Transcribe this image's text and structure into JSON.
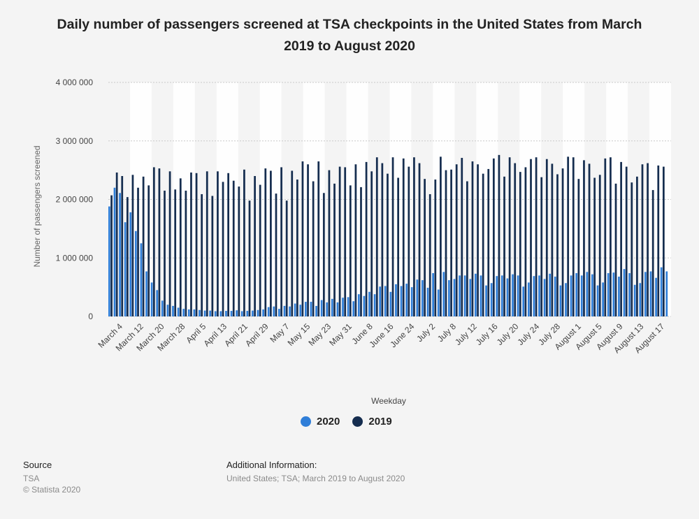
{
  "chart_data": {
    "type": "bar",
    "title": "Daily number of passengers screened at TSA checkpoints in the United States from March 2019 to August 2020",
    "xlabel": "Weekday",
    "ylabel": "Number of passengers screened",
    "ylim": [
      0,
      4000000
    ],
    "yticks": [
      0,
      1000000,
      2000000,
      3000000,
      4000000
    ],
    "ytick_labels": [
      "0",
      "1 000 000",
      "2 000 000",
      "3 000 000",
      "4 000 000"
    ],
    "xtick_labels": [
      "March 4",
      "March 12",
      "March 20",
      "March 28",
      "April 5",
      "April 13",
      "April 21",
      "April 29",
      "May 7",
      "May 15",
      "May 23",
      "May 31",
      "June 8",
      "June 16",
      "June 24",
      "July 2",
      "July 8",
      "July 12",
      "July 16",
      "July 20",
      "July 24",
      "July 28",
      "August 1",
      "August 5",
      "August 9",
      "August 13",
      "August 17"
    ],
    "grid": true,
    "legend_position": "bottom-center",
    "series": [
      {
        "name": "2020",
        "color": "#2f7ed8",
        "values": [
          1880000,
          2200000,
          2110000,
          1610000,
          1780000,
          1460000,
          1250000,
          770000,
          580000,
          450000,
          270000,
          200000,
          180000,
          150000,
          130000,
          120000,
          120000,
          110000,
          100000,
          100000,
          90000,
          90000,
          95000,
          95000,
          105000,
          90000,
          95000,
          100000,
          110000,
          120000,
          160000,
          170000,
          130000,
          180000,
          170000,
          220000,
          200000,
          250000,
          250000,
          180000,
          280000,
          240000,
          300000,
          240000,
          320000,
          330000,
          260000,
          380000,
          350000,
          420000,
          380000,
          510000,
          520000,
          420000,
          550000,
          520000,
          560000,
          500000,
          630000,
          620000,
          490000,
          740000,
          460000,
          760000,
          620000,
          640000,
          700000,
          700000,
          640000,
          730000,
          700000,
          530000,
          570000,
          690000,
          700000,
          650000,
          720000,
          700000,
          510000,
          580000,
          690000,
          700000,
          640000,
          730000,
          680000,
          530000,
          570000,
          700000,
          740000,
          700000,
          760000,
          720000,
          530000,
          580000,
          740000,
          750000,
          680000,
          810000,
          740000,
          540000,
          570000,
          760000,
          770000,
          660000,
          840000,
          770000
        ]
      },
      {
        "name": "2019",
        "color": "#152d4f",
        "values": [
          2070000,
          2460000,
          2400000,
          2040000,
          2420000,
          2200000,
          2390000,
          2240000,
          2550000,
          2530000,
          2150000,
          2480000,
          2170000,
          2360000,
          2150000,
          2460000,
          2450000,
          2090000,
          2480000,
          2060000,
          2480000,
          2300000,
          2450000,
          2320000,
          2220000,
          2510000,
          1980000,
          2400000,
          2250000,
          2530000,
          2490000,
          2100000,
          2550000,
          1980000,
          2490000,
          2340000,
          2650000,
          2600000,
          2310000,
          2650000,
          2110000,
          2500000,
          2270000,
          2560000,
          2550000,
          2240000,
          2600000,
          2210000,
          2640000,
          2480000,
          2720000,
          2620000,
          2440000,
          2720000,
          2370000,
          2700000,
          2560000,
          2720000,
          2620000,
          2350000,
          2090000,
          2340000,
          2730000,
          2500000,
          2510000,
          2600000,
          2710000,
          2310000,
          2650000,
          2600000,
          2440000,
          2520000,
          2700000,
          2760000,
          2390000,
          2720000,
          2620000,
          2470000,
          2550000,
          2690000,
          2720000,
          2380000,
          2690000,
          2610000,
          2430000,
          2530000,
          2730000,
          2720000,
          2350000,
          2670000,
          2610000,
          2370000,
          2420000,
          2700000,
          2720000,
          2270000,
          2640000,
          2560000,
          2290000,
          2390000,
          2600000,
          2620000,
          2160000,
          2580000,
          2560000
        ]
      }
    ]
  },
  "legend": {
    "items": [
      {
        "label": "2020",
        "color": "#2f7ed8"
      },
      {
        "label": "2019",
        "color": "#152d4f"
      }
    ]
  },
  "footer": {
    "source_title": "Source",
    "source_lines": [
      "TSA",
      "© Statista 2020"
    ],
    "info_title": "Additional Information:",
    "info_line": "United States; TSA; March 2019 to August 2020"
  }
}
